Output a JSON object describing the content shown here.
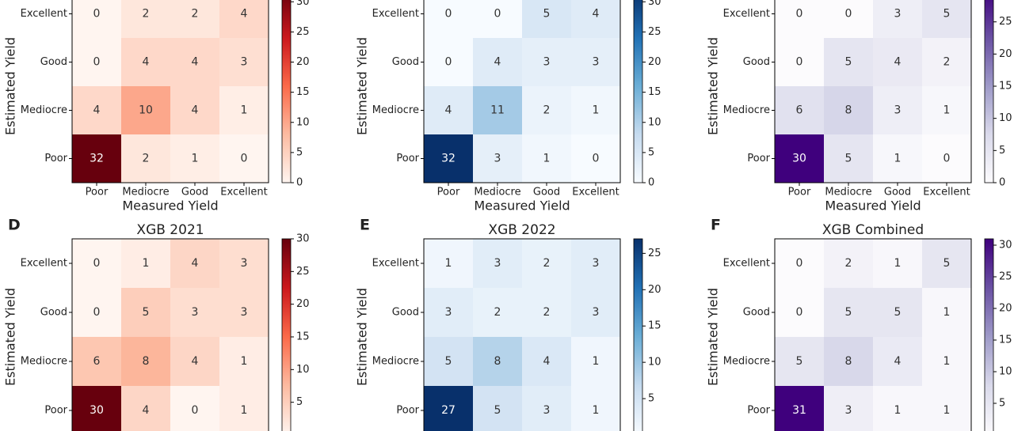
{
  "chart_data": [
    {
      "type": "heatmap",
      "rows": [
        "Excellent",
        "Good",
        "Mediocre",
        "Poor"
      ],
      "columns": [
        "Poor",
        "Mediocre",
        "Good",
        "Excellent"
      ],
      "y_label": "Estimated Yield",
      "x_label": "Measured Yield",
      "values": [
        [
          0,
          2,
          2,
          4
        ],
        [
          0,
          4,
          4,
          3
        ],
        [
          4,
          10,
          4,
          1
        ],
        [
          32,
          2,
          1,
          0
        ]
      ],
      "zlim": [
        0,
        32
      ],
      "zticks": [
        0,
        5,
        10,
        15,
        20,
        25,
        30
      ],
      "colormap": [
        "#fff5f0",
        "#fcbba1",
        "#fb6a4a",
        "#cb181d",
        "#67000d"
      ]
    },
    {
      "type": "heatmap",
      "rows": [
        "Excellent",
        "Good",
        "Mediocre",
        "Poor"
      ],
      "columns": [
        "Poor",
        "Mediocre",
        "Good",
        "Excellent"
      ],
      "y_label": "Estimated Yield",
      "x_label": "Measured Yield",
      "values": [
        [
          0,
          0,
          5,
          4
        ],
        [
          0,
          4,
          3,
          3
        ],
        [
          4,
          11,
          2,
          1
        ],
        [
          32,
          3,
          1,
          0
        ]
      ],
      "zlim": [
        0,
        32
      ],
      "zticks": [
        0,
        5,
        10,
        15,
        20,
        25,
        30
      ],
      "colormap": [
        "#f7fbff",
        "#c6dbef",
        "#6baed6",
        "#2171b5",
        "#08306b"
      ]
    },
    {
      "type": "heatmap",
      "rows": [
        "Excellent",
        "Good",
        "Mediocre",
        "Poor"
      ],
      "columns": [
        "Poor",
        "Mediocre",
        "Good",
        "Excellent"
      ],
      "y_label": "Estimated Yield",
      "x_label": "Measured Yield",
      "values": [
        [
          0,
          0,
          3,
          5
        ],
        [
          0,
          5,
          4,
          2
        ],
        [
          6,
          8,
          3,
          1
        ],
        [
          30,
          5,
          1,
          0
        ]
      ],
      "zlim": [
        0,
        30
      ],
      "zticks": [
        0,
        5,
        10,
        15,
        20,
        25
      ],
      "colormap": [
        "#fcfbfd",
        "#dadaeb",
        "#9e9ac8",
        "#6a51a3",
        "#3f007d"
      ]
    },
    {
      "type": "heatmap",
      "label": "D",
      "title": "XGB 2021",
      "rows": [
        "Excellent",
        "Good",
        "Mediocre",
        "Poor"
      ],
      "y_label": "Estimated Yield",
      "values": [
        [
          0,
          1,
          4,
          3
        ],
        [
          0,
          5,
          3,
          3
        ],
        [
          6,
          8,
          4,
          1
        ],
        [
          30,
          4,
          0,
          1
        ]
      ],
      "zlim": [
        0,
        30
      ],
      "zticks": [
        5,
        10,
        15,
        20,
        25,
        30
      ],
      "colormap": [
        "#fff5f0",
        "#fcbba1",
        "#fb6a4a",
        "#cb181d",
        "#67000d"
      ]
    },
    {
      "type": "heatmap",
      "label": "E",
      "title": "XGB 2022",
      "rows": [
        "Excellent",
        "Good",
        "Mediocre",
        "Poor"
      ],
      "y_label": "Estimated Yield",
      "values": [
        [
          1,
          3,
          2,
          3
        ],
        [
          3,
          2,
          2,
          3
        ],
        [
          5,
          8,
          4,
          1
        ],
        [
          27,
          5,
          3,
          1
        ]
      ],
      "zlim": [
        0,
        27
      ],
      "zticks": [
        5,
        10,
        15,
        20,
        25
      ],
      "colormap": [
        "#f7fbff",
        "#c6dbef",
        "#6baed6",
        "#2171b5",
        "#08306b"
      ]
    },
    {
      "type": "heatmap",
      "label": "F",
      "title": "XGB Combined",
      "rows": [
        "Excellent",
        "Good",
        "Mediocre",
        "Poor"
      ],
      "y_label": "Estimated Yield",
      "values": [
        [
          0,
          2,
          1,
          5
        ],
        [
          0,
          5,
          5,
          1
        ],
        [
          5,
          8,
          4,
          1
        ],
        [
          31,
          3,
          1,
          1
        ]
      ],
      "zlim": [
        0,
        31
      ],
      "zticks": [
        5,
        10,
        15,
        20,
        25,
        30
      ],
      "colormap": [
        "#fcfbfd",
        "#dadaeb",
        "#9e9ac8",
        "#6a51a3",
        "#3f007d"
      ]
    }
  ]
}
